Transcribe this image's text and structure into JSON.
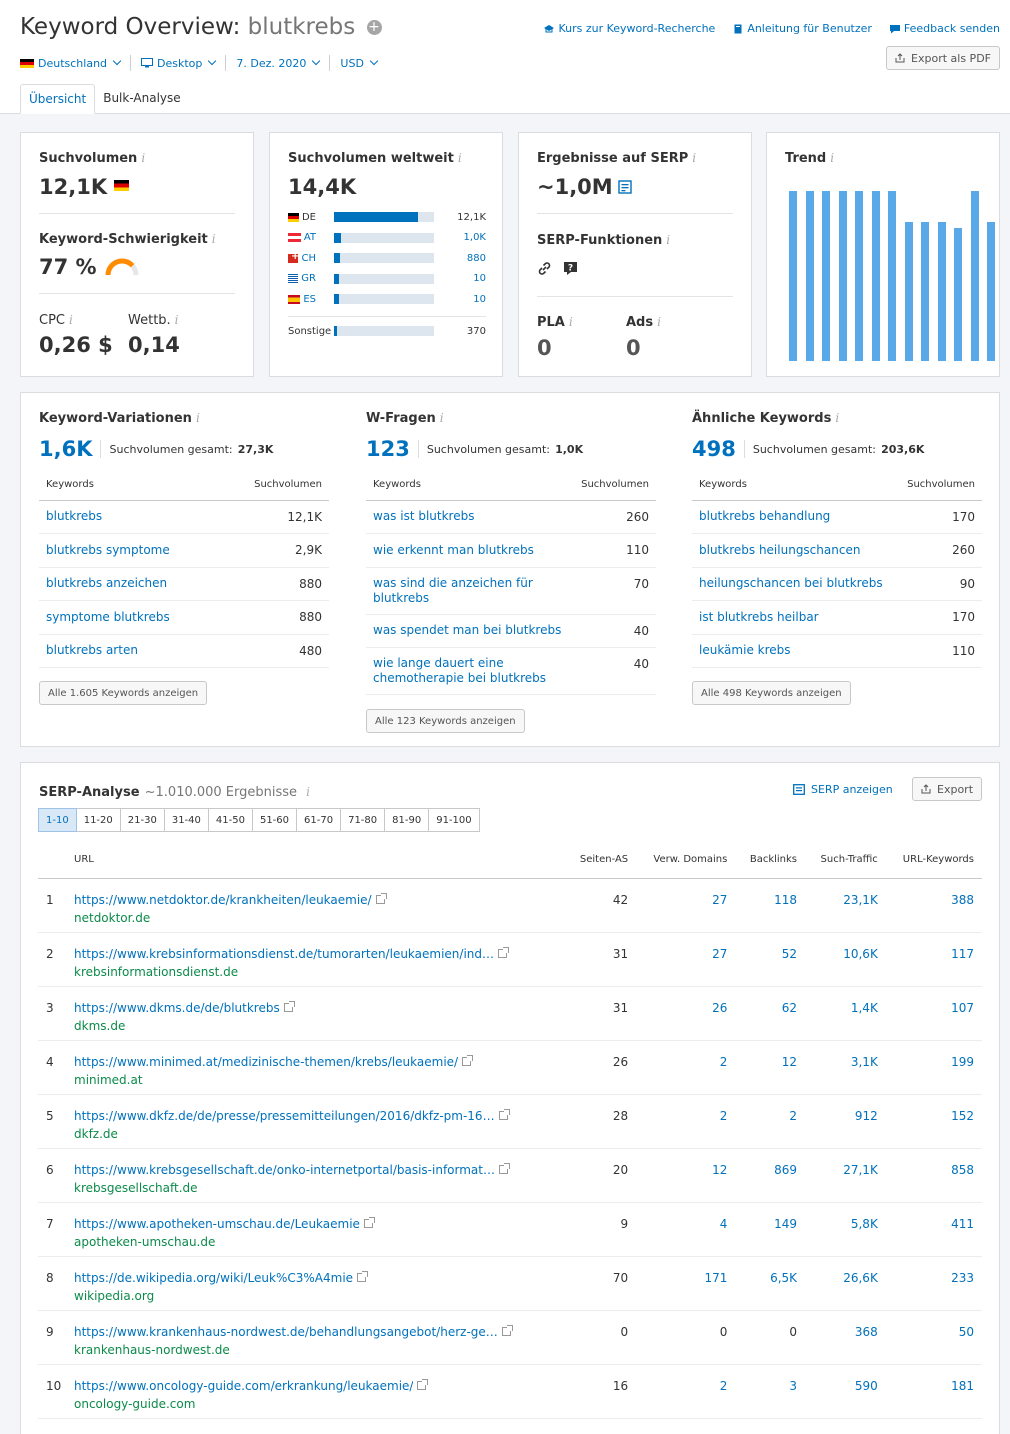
{
  "header": {
    "title": "Keyword Overview:",
    "keyword": "blutkrebs",
    "links": [
      "Kurs zur Keyword-Recherche",
      "Anleitung für Benutzer",
      "Feedback senden"
    ],
    "export_pdf": "Export als PDF",
    "filters": {
      "country": "Deutschland",
      "device": "Desktop",
      "date": "7. Dez. 2020",
      "currency": "USD"
    },
    "tabs": [
      "Übersicht",
      "Bulk-Analyse"
    ]
  },
  "volume_card": {
    "label": "Suchvolumen",
    "value": "12,1K",
    "kd_label": "Keyword-Schwierigkeit",
    "kd_value": "77 %",
    "kd_percent": 77,
    "cpc_label": "CPC",
    "cpc_value": "0,26 $",
    "comp_label": "Wettb.",
    "comp_value": "0,14"
  },
  "global_card": {
    "label": "Suchvolumen weltweit",
    "value": "14,4K",
    "countries": [
      {
        "code": "DE",
        "flag": "de",
        "value": "12,1K",
        "share": 0.84
      },
      {
        "code": "AT",
        "flag": "at",
        "value": "1,0K",
        "share": 0.07
      },
      {
        "code": "CH",
        "flag": "ch",
        "value": "880",
        "share": 0.06
      },
      {
        "code": "GR",
        "flag": "gr",
        "value": "10",
        "share": 0.01
      },
      {
        "code": "ES",
        "flag": "es",
        "value": "10",
        "share": 0.01
      }
    ],
    "other_label": "Sonstige",
    "other_value": "370",
    "other_share": 0.02
  },
  "serp_card": {
    "label": "Ergebnisse auf SERP",
    "value": "~1,0M",
    "features_label": "SERP-Funktionen",
    "pla_label": "PLA",
    "pla_value": "0",
    "ads_label": "Ads",
    "ads_value": "0"
  },
  "trend_card": {
    "label": "Trend",
    "values": [
      100,
      100,
      100,
      100,
      100,
      100,
      100,
      82,
      82,
      82,
      78,
      100,
      82
    ]
  },
  "variations": {
    "label": "Keyword-Variationen",
    "count": "1,6K",
    "total_label": "Suchvolumen gesamt:",
    "total": "27,3K",
    "col_kw": "Keywords",
    "col_vol": "Suchvolumen",
    "rows": [
      {
        "kw": "blutkrebs",
        "vol": "12,1K"
      },
      {
        "kw": "blutkrebs symptome",
        "vol": "2,9K"
      },
      {
        "kw": "blutkrebs anzeichen",
        "vol": "880"
      },
      {
        "kw": "symptome blutkrebs",
        "vol": "880"
      },
      {
        "kw": "blutkrebs arten",
        "vol": "480"
      }
    ],
    "button": "Alle 1.605 Keywords anzeigen"
  },
  "questions": {
    "label": "W-Fragen",
    "count": "123",
    "total_label": "Suchvolumen gesamt:",
    "total": "1,0K",
    "col_kw": "Keywords",
    "col_vol": "Suchvolumen",
    "rows": [
      {
        "kw": "was ist blutkrebs",
        "vol": "260"
      },
      {
        "kw": "wie erkennt man blutkrebs",
        "vol": "110"
      },
      {
        "kw": "was sind die anzeichen für blutkrebs",
        "vol": "70"
      },
      {
        "kw": "was spendet man bei blutkrebs",
        "vol": "40"
      },
      {
        "kw": "wie lange dauert eine chemotherapie bei blutkrebs",
        "vol": "40"
      }
    ],
    "button": "Alle 123 Keywords anzeigen"
  },
  "related": {
    "label": "Ähnliche Keywords",
    "count": "498",
    "total_label": "Suchvolumen gesamt:",
    "total": "203,6K",
    "col_kw": "Keywords",
    "col_vol": "Suchvolumen",
    "rows": [
      {
        "kw": "blutkrebs behandlung",
        "vol": "170"
      },
      {
        "kw": "blutkrebs heilungschancen",
        "vol": "260"
      },
      {
        "kw": "heilungschancen bei blutkrebs",
        "vol": "90"
      },
      {
        "kw": "ist blutkrebs heilbar",
        "vol": "170"
      },
      {
        "kw": "leukämie krebs",
        "vol": "110"
      }
    ],
    "button": "Alle 498 Keywords anzeigen"
  },
  "serp_analysis": {
    "label": "SERP-Analyse",
    "results": "~1.010.000 Ergebnisse",
    "show_serp": "SERP anzeigen",
    "export": "Export",
    "pages": [
      "1-10",
      "11-20",
      "21-30",
      "31-40",
      "41-50",
      "51-60",
      "61-70",
      "71-80",
      "81-90",
      "91-100"
    ],
    "columns": [
      "URL",
      "Seiten-AS",
      "Verw. Domains",
      "Backlinks",
      "Such-Traffic",
      "URL-Keywords"
    ],
    "rows": [
      {
        "n": "1",
        "url": "https://www.netdoktor.de/krankheiten/leukaemie/",
        "domain": "netdoktor.de",
        "as": "42",
        "rd": "27",
        "bl": "118",
        "tr": "23,1K",
        "kw": "388"
      },
      {
        "n": "2",
        "url": "https://www.krebsinformationsdienst.de/tumorarten/leukaemien/ind…",
        "domain": "krebsinformationsdienst.de",
        "as": "31",
        "rd": "27",
        "bl": "52",
        "tr": "10,6K",
        "kw": "117"
      },
      {
        "n": "3",
        "url": "https://www.dkms.de/de/blutkrebs",
        "domain": "dkms.de",
        "as": "31",
        "rd": "26",
        "bl": "62",
        "tr": "1,4K",
        "kw": "107"
      },
      {
        "n": "4",
        "url": "https://www.minimed.at/medizinische-themen/krebs/leukaemie/",
        "domain": "minimed.at",
        "as": "26",
        "rd": "2",
        "bl": "12",
        "tr": "3,1K",
        "kw": "199"
      },
      {
        "n": "5",
        "url": "https://www.dkfz.de/de/presse/pressemitteilungen/2016/dkfz-pm-16…",
        "domain": "dkfz.de",
        "as": "28",
        "rd": "2",
        "bl": "2",
        "tr": "912",
        "kw": "152"
      },
      {
        "n": "6",
        "url": "https://www.krebsgesellschaft.de/onko-internetportal/basis-informat…",
        "domain": "krebsgesellschaft.de",
        "as": "20",
        "rd": "12",
        "bl": "869",
        "tr": "27,1K",
        "kw": "858"
      },
      {
        "n": "7",
        "url": "https://www.apotheken-umschau.de/Leukaemie",
        "domain": "apotheken-umschau.de",
        "as": "9",
        "rd": "4",
        "bl": "149",
        "tr": "5,8K",
        "kw": "411"
      },
      {
        "n": "8",
        "url": "https://de.wikipedia.org/wiki/Leuk%C3%A4mie",
        "domain": "wikipedia.org",
        "as": "70",
        "rd": "171",
        "bl": "6,5K",
        "tr": "26,6K",
        "kw": "233"
      },
      {
        "n": "9",
        "url": "https://www.krankenhaus-nordwest.de/behandlungsangebot/herz-ge…",
        "domain": "krankenhaus-nordwest.de",
        "as": "0",
        "rd": "0",
        "bl": "0",
        "tr": "368",
        "kw": "50"
      },
      {
        "n": "10",
        "url": "https://www.oncology-guide.com/erkrankung/leukaemie/",
        "domain": "oncology-guide.com",
        "as": "16",
        "rd": "2",
        "bl": "3",
        "tr": "590",
        "kw": "181"
      }
    ]
  }
}
